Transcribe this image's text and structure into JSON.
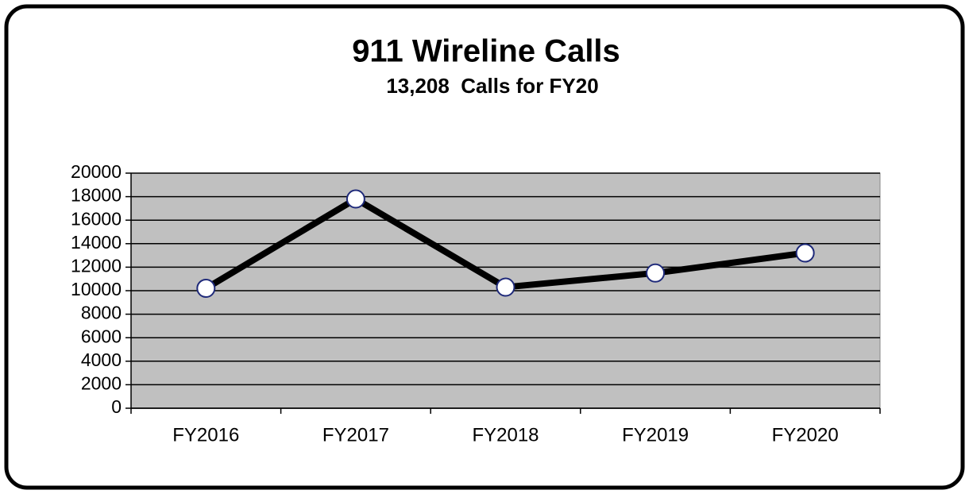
{
  "chart_data": {
    "type": "line",
    "title": "911 Wireline Calls",
    "subtitle": "13,208  Calls for FY20",
    "categories": [
      "FY2016",
      "FY2017",
      "FY2018",
      "FY2019",
      "FY2020"
    ],
    "series": [
      {
        "name": "Calls",
        "color": "#000000",
        "values": [
          10200,
          17800,
          10300,
          11500,
          13208
        ]
      }
    ],
    "ylim": [
      0,
      20000
    ],
    "yticks": [
      0,
      2000,
      4000,
      6000,
      8000,
      10000,
      12000,
      14000,
      16000,
      18000,
      20000
    ],
    "grid": true,
    "plot_background": "#c0c0c0",
    "marker_fill": "#ffffff",
    "marker_edge": "#1f2a7a"
  }
}
